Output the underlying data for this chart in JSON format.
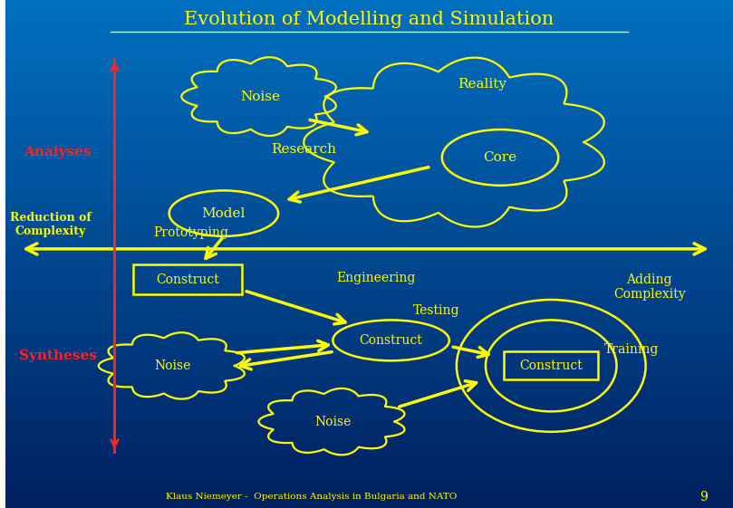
{
  "title": "Evolution of Modelling and Simulation",
  "yellow": "#FFFF00",
  "red": "#FF2222",
  "bg_grad_top": "#002060",
  "bg_grad_bottom": "#0070C0",
  "footer": "Klaus Niemeyer -  Operations Analysis in Bulgaria and NATO",
  "page": "9",
  "labels": {
    "noise_top": "Noise",
    "reality": "Reality",
    "research": "Research",
    "core": "Core",
    "model": "Model",
    "prototyping": "Prototyping",
    "construct1": "Construct",
    "engineering": "Engineering",
    "testing": "Testing",
    "construct2": "Construct",
    "adding_complexity": "Adding\nComplexity",
    "training": "Training",
    "noise_mid": "Noise",
    "noise_bot": "Noise",
    "construct3": "Construct",
    "analyses": "Analyses",
    "reduction": "Reduction of\nComplexity",
    "syntheses": "Syntheses"
  }
}
